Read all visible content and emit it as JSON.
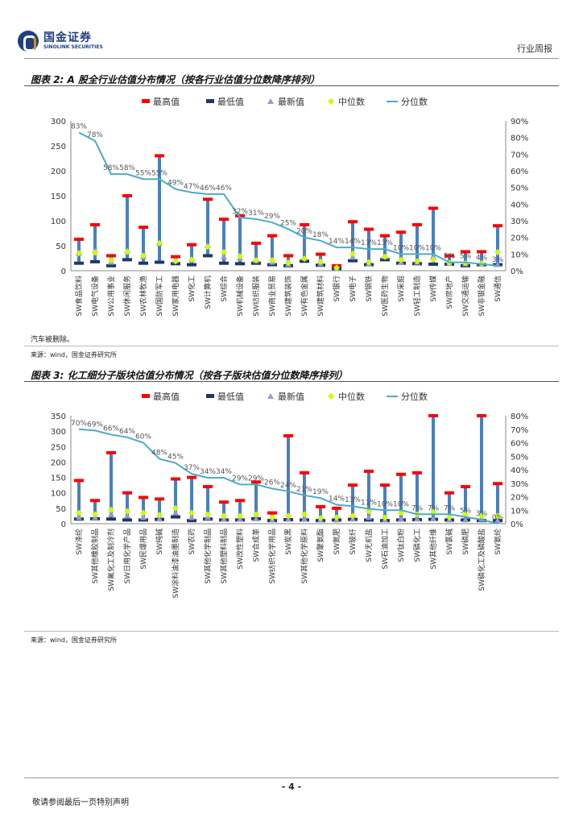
{
  "header": {
    "logo_cn": "国金证券",
    "logo_en": "SINOLINK SECURITIES",
    "report_type": "行业周报"
  },
  "colors": {
    "max": "#ff0000",
    "min": "#1f3864",
    "latest": "#9999cc",
    "median": "#ccff00",
    "pct": "#4bacc6",
    "bar": "#4a7fc0"
  },
  "fig2": {
    "title": "图表 2: A 股全行业估值分布情况（按各行业估值分位数降序排列）"
  },
  "fig3": {
    "title": "图表 3: 化工细分子版块估值分布情况（按各子版块估值分位数降序排列）"
  },
  "note": "汽车被删除。",
  "source1": "来源：wind，国金证券研究所",
  "source2": "来源：wind，国金证券研究所",
  "page_number": "- 4 -",
  "footer": "敬请参阅最后一页特别声明",
  "chart_data": [
    {
      "type": "box",
      "legend": [
        "最高值",
        "最低值",
        "最新值",
        "中位数",
        "分位数"
      ],
      "ylim": [
        0,
        300
      ],
      "yticks": [
        "0",
        "50",
        "100",
        "150",
        "200",
        "250",
        "300"
      ],
      "y2lim": [
        0,
        90
      ],
      "y2ticks": [
        "0%",
        "10%",
        "20%",
        "30%",
        "40%",
        "50%",
        "60%",
        "70%",
        "80%",
        "90%"
      ],
      "categories": [
        "SW食品饮料",
        "SW电气设备",
        "SW公用事业",
        "SW休闲服务",
        "SW农林牧渔",
        "SW国防军工",
        "SW家用电器",
        "SW化工",
        "SW计算机",
        "SW综合",
        "SW机械设备",
        "SW纺织服装",
        "SW商业贸易",
        "SW建筑装饰",
        "SW有色金属",
        "SW建筑材料",
        "SW银行",
        "SW电子",
        "SW钢铁",
        "SW医药生物",
        "SW采掘",
        "SW轻工制造",
        "SW传媒",
        "SW房地产",
        "SW交通运输",
        "SW非银金融",
        "SW通信"
      ],
      "max": [
        63,
        92,
        30,
        150,
        87,
        230,
        28,
        52,
        143,
        103,
        110,
        55,
        70,
        30,
        92,
        33,
        10,
        98,
        83,
        70,
        77,
        92,
        125,
        30,
        38,
        38,
        90
      ],
      "min": [
        15,
        18,
        10,
        22,
        15,
        17,
        14,
        12,
        30,
        15,
        14,
        15,
        12,
        10,
        19,
        11,
        4,
        20,
        12,
        22,
        15,
        14,
        13,
        13,
        10,
        12,
        12
      ],
      "latest": [
        35,
        40,
        17,
        40,
        28,
        55,
        20,
        22,
        50,
        28,
        25,
        20,
        17,
        13,
        25,
        14,
        5,
        27,
        14,
        28,
        17,
        17,
        28,
        15,
        14,
        13,
        12
      ],
      "median": [
        35,
        36,
        21,
        38,
        30,
        55,
        19,
        22,
        48,
        37,
        29,
        21,
        21,
        16,
        24,
        18,
        6,
        34,
        17,
        28,
        22,
        19,
        22,
        16,
        15,
        15,
        37
      ],
      "percentile": [
        83,
        78,
        58,
        58,
        55,
        55,
        49,
        47,
        46,
        46,
        32,
        31,
        29,
        25,
        20,
        18,
        14,
        14,
        13,
        13,
        10,
        10,
        10,
        5,
        5,
        4,
        3
      ],
      "pct_labels": [
        "83%",
        "78%",
        "58%",
        "58%",
        "55%",
        "55%",
        "49%",
        "47%",
        "46%",
        "46%",
        "32%",
        "31%",
        "29%",
        "25%",
        "20%",
        "18%",
        "14%",
        "14%",
        "13%",
        "13%",
        "10%",
        "10%",
        "10%",
        "5%",
        "5%",
        "4%",
        "3%"
      ]
    },
    {
      "type": "box",
      "legend": [
        "最高值",
        "最低值",
        "最新值",
        "中位数",
        "分位数"
      ],
      "ylim": [
        0,
        350
      ],
      "yticks": [
        "0",
        "50",
        "100",
        "150",
        "200",
        "250",
        "300",
        "350"
      ],
      "y2lim": [
        0,
        80
      ],
      "y2ticks": [
        "0%",
        "10%",
        "20%",
        "30%",
        "40%",
        "50%",
        "60%",
        "70%",
        "80%"
      ],
      "categories": [
        "SW涤纶",
        "SW其他橡胶制品",
        "SW氟化工及制冷剂",
        "SW日用化学产品",
        "SW民爆用品",
        "SW纯碱",
        "SW涂料油漆油墨制造",
        "SW农药",
        "SW其他化学制品",
        "SW其他塑料制品",
        "SW改性塑料",
        "SW合成革",
        "SW纺织化学用品",
        "SW炭黑",
        "SW其他化学原料",
        "SW聚氨酯",
        "SW氮肥",
        "SW玻纤",
        "SW无机盐",
        "SW石油加工",
        "SW钛白粉",
        "SW磷化工",
        "SW其他纤维",
        "SW氯碱",
        "SW磷肥",
        "SW磷化工及磷酸盐",
        "SW氨纶"
      ],
      "max": [
        140,
        75,
        230,
        100,
        85,
        80,
        145,
        150,
        120,
        70,
        75,
        135,
        35,
        285,
        165,
        55,
        50,
        125,
        170,
        125,
        160,
        165,
        350,
        100,
        120,
        350,
        130
      ],
      "min": [
        15,
        16,
        15,
        12,
        12,
        14,
        22,
        10,
        15,
        12,
        12,
        16,
        10,
        13,
        12,
        10,
        12,
        14,
        12,
        10,
        12,
        13,
        14,
        12,
        12,
        10,
        10
      ],
      "latest": [
        20,
        20,
        30,
        25,
        20,
        15,
        35,
        20,
        20,
        15,
        15,
        16,
        12,
        14,
        15,
        12,
        12,
        15,
        20,
        12,
        15,
        15,
        16,
        12,
        12,
        14,
        10
      ],
      "median": [
        35,
        30,
        45,
        40,
        35,
        28,
        50,
        35,
        30,
        25,
        25,
        30,
        20,
        25,
        30,
        18,
        20,
        25,
        40,
        20,
        35,
        30,
        38,
        20,
        30,
        25,
        25
      ],
      "percentile": [
        70,
        69,
        66,
        64,
        60,
        48,
        45,
        37,
        34,
        34,
        29,
        29,
        26,
        24,
        21,
        19,
        14,
        13,
        11,
        10,
        10,
        7,
        7,
        7,
        5,
        3,
        0
      ],
      "pct_labels": [
        "70%",
        "69%",
        "66%",
        "64%",
        "60%",
        "48%",
        "45%",
        "37%",
        "34%",
        "34%",
        "29%",
        "29%",
        "26%",
        "24%",
        "21%",
        "19%",
        "14%",
        "13%",
        "11%",
        "10%",
        "10%",
        "7%",
        "7%",
        "7%",
        "5%",
        "3%",
        "0%"
      ]
    }
  ]
}
